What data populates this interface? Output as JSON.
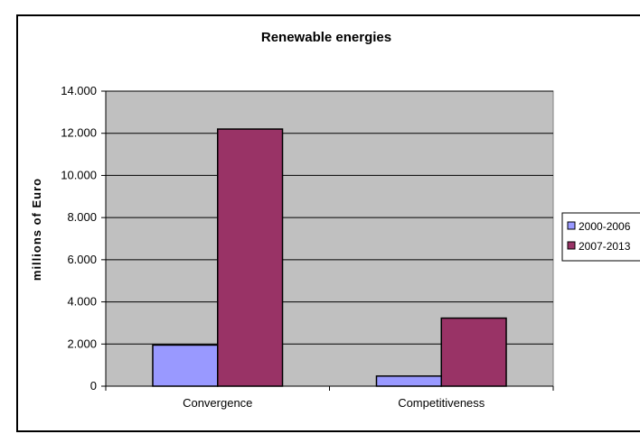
{
  "chart_data": {
    "type": "bar",
    "title": "Renewable energies",
    "xlabel": "",
    "ylabel": "millions of Euro",
    "categories": [
      "Convergence",
      "Competitiveness"
    ],
    "series": [
      {
        "name": "2000-2006",
        "values": [
          1950,
          480
        ],
        "color": "#9999ff"
      },
      {
        "name": "2007-2013",
        "values": [
          12200,
          3230
        ],
        "color": "#993366"
      }
    ],
    "ylim": [
      0,
      14000
    ],
    "yticks": [
      {
        "value": 0,
        "label": "0"
      },
      {
        "value": 2000,
        "label": "2.000"
      },
      {
        "value": 4000,
        "label": "4.000"
      },
      {
        "value": 6000,
        "label": "6.000"
      },
      {
        "value": 8000,
        "label": "8.000"
      },
      {
        "value": 10000,
        "label": "10.000"
      },
      {
        "value": 12000,
        "label": "12.000"
      },
      {
        "value": 14000,
        "label": "14.000"
      }
    ],
    "grid": true,
    "plot_background": "#c0c0c0",
    "legend_position": "right"
  }
}
